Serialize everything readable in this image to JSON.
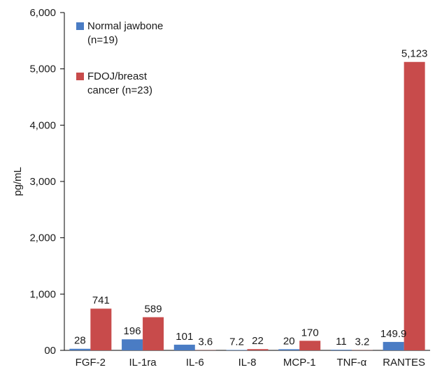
{
  "chart_data": {
    "type": "bar",
    "title": "",
    "xlabel": "",
    "ylabel": "pg/mL",
    "ylim": [
      0,
      6000
    ],
    "yticks": [
      0,
      1000,
      2000,
      3000,
      4000,
      5000,
      6000
    ],
    "ytick_labels": [
      "00",
      "1,000",
      "2,000",
      "3,000",
      "4,000",
      "5,000",
      "6,000"
    ],
    "grid": false,
    "legend_position": "top-left",
    "categories": [
      "FGF-2",
      "IL-1ra",
      "IL-6",
      "IL-8",
      "MCP-1",
      "TNF-α",
      "RANTES"
    ],
    "series": [
      {
        "name": "Normal jawbone (n=19)",
        "legend_lines": [
          "Normal jawbone",
          "(n=19)"
        ],
        "color": "#4a7cc4",
        "values": [
          28,
          196,
          101,
          7.2,
          20,
          11,
          149.9
        ],
        "labels": [
          "28",
          "196",
          "101",
          "7.2",
          "20",
          "11",
          "149.9"
        ]
      },
      {
        "name": "FDOJ/breast cancer (n=23)",
        "legend_lines": [
          "FDOJ/breast",
          "cancer (n=23)"
        ],
        "color": "#c84b4b",
        "values": [
          741,
          589,
          3.6,
          22,
          170,
          3.2,
          5123
        ],
        "labels": [
          "741",
          "589",
          "3.6",
          "22",
          "170",
          "3.2",
          "5,123"
        ]
      }
    ]
  }
}
